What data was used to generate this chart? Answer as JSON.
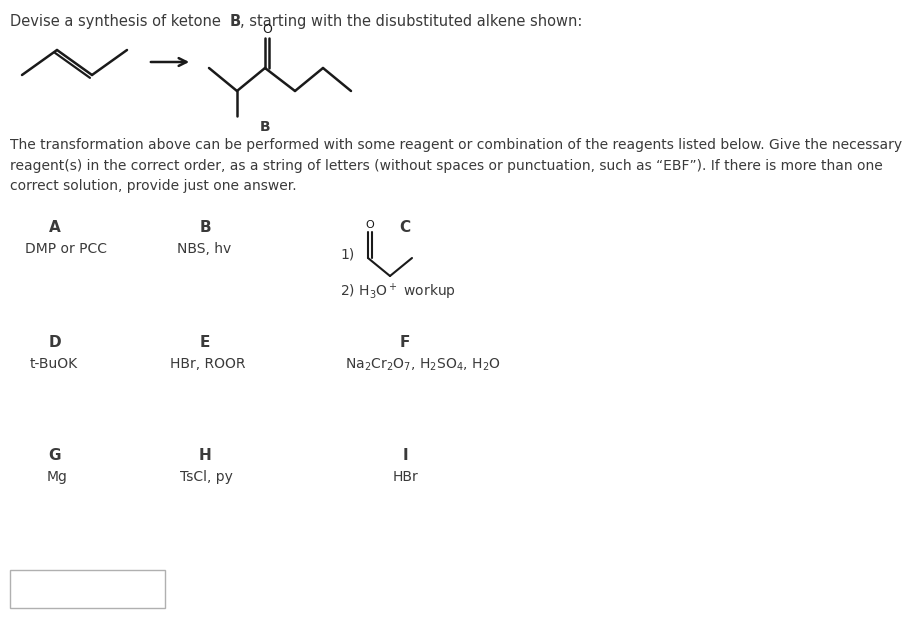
{
  "title_text": "Devise a synthesis of ketone ",
  "title_bold": "B",
  "title_rest": ", starting with the disubstituted alkene shown:",
  "body_text": "The transformation above can be performed with some reagent or combination of the reagents listed below. Give the necessary\nreagent(s) in the correct order, as a string of letters (without spaces or punctuation, such as “EBF”). If there is more than one\ncorrect solution, provide just one answer.",
  "text_color": "#3a3a3a",
  "bond_color": "#1a1a1a",
  "background_color": "#ffffff",
  "font_size_title": 10.5,
  "font_size_body": 10.0,
  "font_size_reagent_label": 11,
  "font_size_reagent_text": 10
}
